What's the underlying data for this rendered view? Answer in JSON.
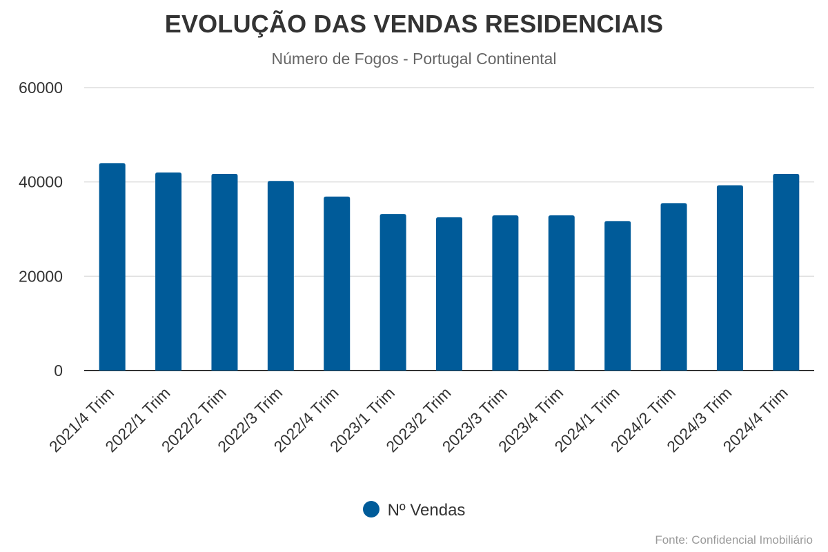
{
  "chart_data": {
    "type": "bar",
    "title": "EVOLUÇÃO DAS VENDAS RESIDENCIAIS",
    "subtitle": "Número de Fogos - Portugal Continental",
    "xlabel": "",
    "ylabel": "",
    "ylim": [
      0,
      60000
    ],
    "yticks": [
      0,
      20000,
      40000,
      60000
    ],
    "grid": true,
    "legend_position": "bottom",
    "categories": [
      "2021/4 Trim",
      "2022/1 Trim",
      "2022/2 Trim",
      "2022/3 Trim",
      "2022/4 Trim",
      "2023/1 Trim",
      "2023/2 Trim",
      "2023/3 Trim",
      "2023/4 Trim",
      "2024/1 Trim",
      "2024/2 Trim",
      "2024/3 Trim",
      "2024/4 Trim"
    ],
    "series": [
      {
        "name": "Nº Vendas",
        "color": "#005b99",
        "values": [
          44000,
          42000,
          41700,
          40200,
          36900,
          33200,
          32500,
          32900,
          32900,
          31700,
          35500,
          39300,
          41700
        ]
      }
    ],
    "source": "Fonte: Confidencial Imobiliário"
  }
}
